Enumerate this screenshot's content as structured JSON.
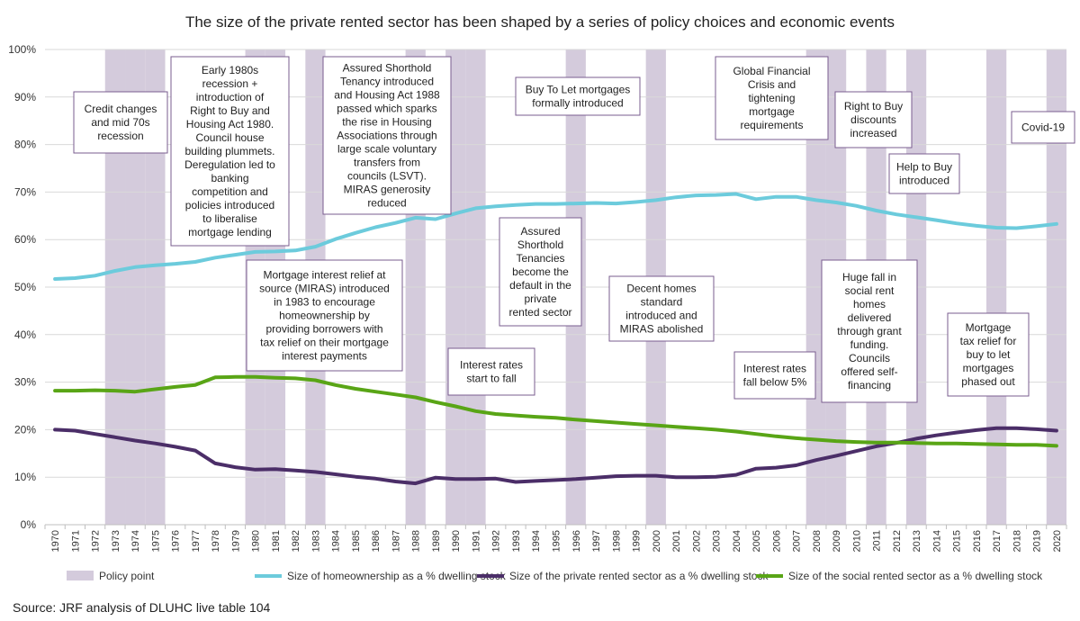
{
  "chart_data": {
    "type": "line",
    "title": "The size of the private rented sector has been shaped by a series of policy choices and economic events",
    "x": [
      1970,
      1971,
      1972,
      1973,
      1974,
      1975,
      1976,
      1977,
      1978,
      1979,
      1980,
      1981,
      1982,
      1983,
      1984,
      1985,
      1986,
      1987,
      1988,
      1989,
      1990,
      1991,
      1992,
      1993,
      1994,
      1995,
      1996,
      1997,
      1998,
      1999,
      2000,
      2001,
      2002,
      2003,
      2004,
      2005,
      2006,
      2007,
      2008,
      2009,
      2010,
      2011,
      2012,
      2013,
      2014,
      2015,
      2016,
      2017,
      2018,
      2019,
      2020
    ],
    "x_tick_labels": [
      "1970",
      "1971",
      "1972",
      "1973",
      "1974",
      "1975",
      "1976",
      "1977",
      "1978",
      "1979",
      "1980",
      "1981",
      "1982",
      "1983",
      "1984",
      "1985",
      "1986",
      "1987",
      "1988",
      "1989",
      "1990",
      "1991",
      "1992",
      "1993",
      "1994",
      "1995",
      "1996",
      "1997",
      "1998",
      "1999",
      "2000",
      "2001",
      "2002",
      "2003",
      "2004",
      "2005",
      "2006",
      "2007",
      "2008",
      "2009",
      "2010",
      "2011",
      "2012",
      "2013",
      "2014",
      "2015",
      "2016",
      "2017",
      "2018",
      "2019",
      "2020"
    ],
    "ylim": [
      0,
      100
    ],
    "y_ticks": [
      "0%",
      "10%",
      "20%",
      "30%",
      "40%",
      "50%",
      "60%",
      "70%",
      "80%",
      "90%",
      "100%"
    ],
    "grid": true,
    "policy_points": [
      1973,
      1974,
      1975,
      1980,
      1981,
      1983,
      1988,
      1990,
      1991,
      1996,
      2000,
      2008,
      2009,
      2011,
      2013,
      2017,
      2020
    ],
    "series": [
      {
        "name": "Size of homeownership as a % dwelling stock",
        "color": "#6ccbdc",
        "values": [
          51.7,
          51.9,
          52.4,
          53.4,
          54.2,
          54.6,
          54.9,
          55.3,
          56.2,
          56.8,
          57.4,
          57.5,
          57.7,
          58.5,
          60.1,
          61.4,
          62.6,
          63.5,
          64.6,
          64.3,
          65.5,
          66.6,
          67.0,
          67.3,
          67.5,
          67.5,
          67.6,
          67.7,
          67.6,
          67.9,
          68.3,
          68.9,
          69.3,
          69.4,
          69.6,
          68.5,
          69.0,
          69.0,
          68.3,
          67.8,
          67.1,
          66.1,
          65.3,
          64.7,
          64.1,
          63.4,
          62.9,
          62.5,
          62.4,
          62.8,
          63.3
        ]
      },
      {
        "name": "Size of the private rented sector as a % dwelling stock",
        "color": "#4b2e68",
        "values": [
          20.0,
          19.8,
          19.1,
          18.4,
          17.7,
          17.1,
          16.4,
          15.6,
          12.9,
          12.1,
          11.6,
          11.7,
          11.4,
          11.1,
          10.6,
          10.1,
          9.7,
          9.1,
          8.7,
          9.9,
          9.6,
          9.6,
          9.7,
          9.0,
          9.2,
          9.4,
          9.6,
          9.9,
          10.2,
          10.3,
          10.3,
          10.0,
          10.0,
          10.1,
          10.5,
          11.8,
          12.0,
          12.5,
          13.6,
          14.5,
          15.5,
          16.5,
          17.2,
          18.1,
          18.8,
          19.4,
          19.9,
          20.3,
          20.3,
          20.1,
          19.8
        ]
      },
      {
        "name": "Size of the social rented sector as a % dwelling stock",
        "color": "#59a516",
        "values": [
          28.2,
          28.2,
          28.3,
          28.2,
          28.0,
          28.5,
          29.0,
          29.4,
          31.0,
          31.1,
          31.1,
          30.9,
          30.8,
          30.4,
          29.4,
          28.6,
          28.0,
          27.4,
          26.8,
          25.8,
          24.9,
          23.9,
          23.3,
          23.0,
          22.7,
          22.5,
          22.1,
          21.8,
          21.5,
          21.2,
          20.9,
          20.6,
          20.3,
          20.0,
          19.6,
          19.1,
          18.6,
          18.2,
          17.9,
          17.6,
          17.4,
          17.3,
          17.3,
          17.2,
          17.1,
          17.1,
          17.0,
          16.9,
          16.8,
          16.8,
          16.6
        ]
      }
    ],
    "legend": {
      "placement": "bottom",
      "policy_label": "Policy point",
      "policy_color": "#d4cbdc"
    },
    "annotations": [
      {
        "id": "credit-changes",
        "lines": [
          "Credit changes",
          "and mid 70s",
          "recession"
        ]
      },
      {
        "id": "early-1980s",
        "lines": [
          "Early 1980s",
          "recession +",
          "introduction of",
          "Right to Buy and",
          "Housing Act 1980.",
          "Council house",
          "building plummets.",
          "Deregulation led to",
          "banking",
          "competition and",
          "policies introduced",
          "to liberalise",
          "mortgage lending"
        ]
      },
      {
        "id": "assured-shorthold-1988",
        "lines": [
          "Assured Shorthold",
          "Tenancy introduced",
          "and Housing Act 1988",
          "passed which sparks",
          "the rise in Housing",
          "Associations through",
          "large scale voluntary",
          "transfers from",
          "councils (LSVT).",
          "MIRAS generosity",
          "reduced"
        ]
      },
      {
        "id": "buy-to-let",
        "lines": [
          "Buy To Let mortgages",
          "formally introduced"
        ]
      },
      {
        "id": "gfc",
        "lines": [
          "Global Financial",
          "Crisis and",
          "tightening",
          "mortgage",
          "requirements"
        ]
      },
      {
        "id": "rtb-discounts",
        "lines": [
          "Right to Buy",
          "discounts",
          "increased"
        ]
      },
      {
        "id": "covid",
        "lines": [
          "Covid-19"
        ]
      },
      {
        "id": "help-to-buy",
        "lines": [
          "Help to Buy",
          "introduced"
        ]
      },
      {
        "id": "miras",
        "lines": [
          "Mortgage interest relief at",
          "source (MIRAS) introduced",
          "in 1983 to encourage",
          "homeownership by",
          "providing borrowers with",
          "tax relief on their mortgage",
          "interest payments"
        ]
      },
      {
        "id": "ast-default",
        "lines": [
          "Assured",
          "Shorthold",
          "Tenancies",
          "become the",
          "default in the",
          "private",
          "rented sector"
        ]
      },
      {
        "id": "decent-homes",
        "lines": [
          "Decent homes",
          "standard",
          "introduced and",
          "MIRAS abolished"
        ]
      },
      {
        "id": "social-rent-fall",
        "lines": [
          "Huge fall in",
          "social rent",
          "homes",
          "delivered",
          "through grant",
          "funding.",
          "Councils",
          "offered self-",
          "financing"
        ]
      },
      {
        "id": "mortgage-tax-relief",
        "lines": [
          "Mortgage",
          "tax relief for",
          "buy to let",
          "mortgages",
          "phased out"
        ]
      },
      {
        "id": "rates-fall",
        "lines": [
          "Interest rates",
          "start to fall"
        ]
      },
      {
        "id": "rates-below-5",
        "lines": [
          "Interest rates",
          "fall below 5%"
        ]
      }
    ]
  },
  "source": "Source: JRF analysis of DLUHC live table 104"
}
